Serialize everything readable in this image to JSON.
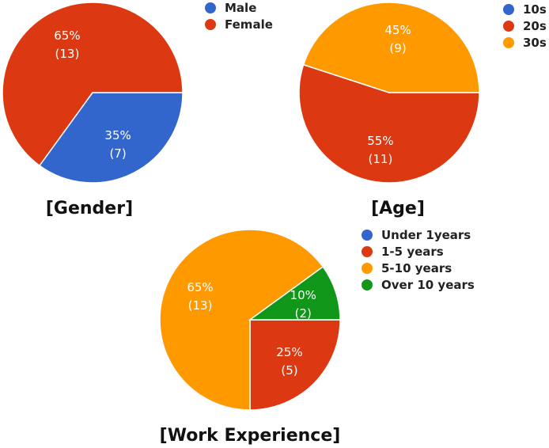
{
  "chart_data": [
    {
      "type": "pie",
      "title": "[Gender]",
      "legend_position": "top-right",
      "slices": [
        {
          "name": "Male",
          "percent_label": "35%",
          "count_label": "(7)",
          "value": 7,
          "color": "#3366cc"
        },
        {
          "name": "Female",
          "percent_label": "65%",
          "count_label": "(13)",
          "value": 13,
          "color": "#dc3912"
        }
      ]
    },
    {
      "type": "pie",
      "title": "[Age]",
      "legend_position": "top-right",
      "slices": [
        {
          "name": "10s",
          "percent_label": "",
          "count_label": "",
          "value": 0,
          "color": "#3366cc"
        },
        {
          "name": "20s",
          "percent_label": "55%",
          "count_label": "(11)",
          "value": 11,
          "color": "#dc3912"
        },
        {
          "name": "30s",
          "percent_label": "45%",
          "count_label": "(9)",
          "value": 9,
          "color": "#ff9900"
        }
      ]
    },
    {
      "type": "pie",
      "title": "[Work Experience]",
      "legend_position": "top-right",
      "slices": [
        {
          "name": "Under 1years",
          "percent_label": "",
          "count_label": "",
          "value": 0,
          "color": "#3366cc"
        },
        {
          "name": "1-5 years",
          "percent_label": "25%",
          "count_label": "(5)",
          "value": 5,
          "color": "#dc3912"
        },
        {
          "name": "5-10 years",
          "percent_label": "65%",
          "count_label": "(13)",
          "value": 13,
          "color": "#ff9900"
        },
        {
          "name": "Over 10 years",
          "percent_label": "10%",
          "count_label": "(2)",
          "value": 2,
          "color": "#109618"
        }
      ]
    }
  ]
}
